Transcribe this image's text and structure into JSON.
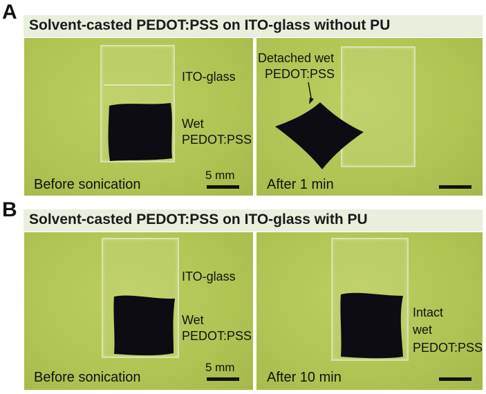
{
  "panels": {
    "a": {
      "letter": "A",
      "banner": "Solvent-casted PEDOT:PSS on ITO-glass without PU",
      "left": {
        "glass_label": "ITO-glass",
        "film_label_1": "Wet",
        "film_label_2": "PEDOT:PSS",
        "caption": "Before sonication",
        "scale": "5 mm"
      },
      "right": {
        "annotation_1": "Detached wet",
        "annotation_2": "PEDOT:PSS",
        "caption": "After 1 min"
      }
    },
    "b": {
      "letter": "B",
      "banner": "Solvent-casted PEDOT:PSS on ITO-glass with PU",
      "left": {
        "glass_label": "ITO-glass",
        "film_label_1": "Wet",
        "film_label_2": "PEDOT:PSS",
        "caption": "Before sonication",
        "scale": "5 mm"
      },
      "right": {
        "film_label_1": "Intact",
        "film_label_2": "wet",
        "film_label_3": "PEDOT:PSS",
        "caption": "After 10 min"
      }
    }
  },
  "colors": {
    "background_green": "#b1c656",
    "banner": "#e8efdc",
    "film": "#0c0c12"
  }
}
